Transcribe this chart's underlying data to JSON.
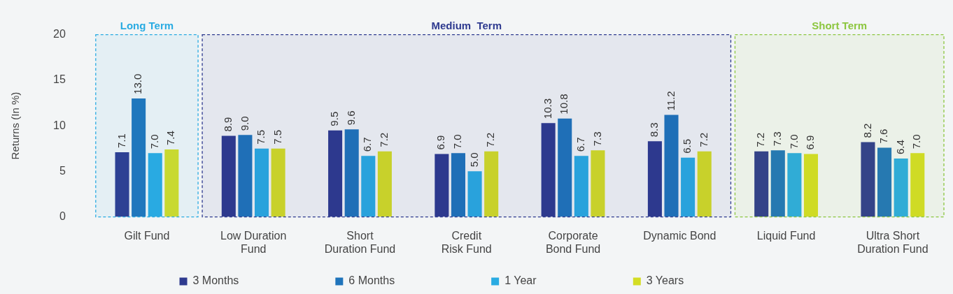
{
  "chart_data": {
    "type": "bar",
    "ylabel": "Returns (In %)",
    "categories": [
      "Gilt Fund",
      "Low Duration Fund",
      "Short Duration Fund",
      "Credit Risk Fund",
      "Corporate Bond Fund",
      "Dynamic Bond",
      "Liquid Fund",
      "Ultra Short Duration Fund"
    ],
    "series": [
      {
        "name": "3 Months",
        "color": "#2e3a8f",
        "values": [
          7.1,
          8.9,
          9.5,
          6.9,
          10.3,
          8.3,
          7.2,
          8.2
        ],
        "value_labels": [
          "7.1",
          "8.9",
          "9.5",
          "6.9",
          "10.3",
          "8.3",
          "7.2",
          "8.2"
        ]
      },
      {
        "name": "6 Months",
        "color": "#1f74bb",
        "values": [
          13.0,
          9.0,
          9.6,
          7.0,
          10.8,
          11.2,
          7.3,
          7.6
        ],
        "value_labels": [
          "13.0",
          "9.0",
          "9.6",
          "7.0",
          "10.8",
          "11.2",
          "7.3",
          "7.6"
        ]
      },
      {
        "name": "1 Year",
        "color": "#29abe2",
        "values": [
          7.0,
          7.5,
          6.7,
          5.0,
          6.7,
          6.5,
          7.0,
          6.4
        ],
        "value_labels": [
          "7.0",
          "7.5",
          "6.7",
          "5.0",
          "6.7",
          "6.5",
          "7.0",
          "6.4"
        ]
      },
      {
        "name": "3 Years",
        "color": "#d4dd24",
        "values": [
          7.4,
          7.5,
          7.2,
          7.2,
          7.3,
          7.2,
          6.9,
          7.0
        ],
        "value_labels": [
          "7.4",
          "7.5",
          "7.2",
          "7.2",
          "7.3",
          "7.2",
          "6.9",
          "7.0"
        ]
      }
    ],
    "ylim": [
      0,
      20
    ],
    "yticks": [
      0,
      5,
      10,
      15,
      20
    ],
    "grid": false,
    "legend": "bottom",
    "bands": [
      {
        "axis": "x",
        "from": "Gilt Fund",
        "to": "Gilt Fund",
        "label": "Long Term",
        "color": "#29abe2"
      },
      {
        "axis": "x",
        "from": "Low Duration Fund",
        "to": "Dynamic Bond",
        "label": "Medium  Term",
        "color": "#2e3a8f"
      },
      {
        "axis": "x",
        "from": "Liquid Fund",
        "to": "Ultra Short Duration Fund",
        "label": "Short Term",
        "color": "#8cc63f"
      }
    ]
  }
}
